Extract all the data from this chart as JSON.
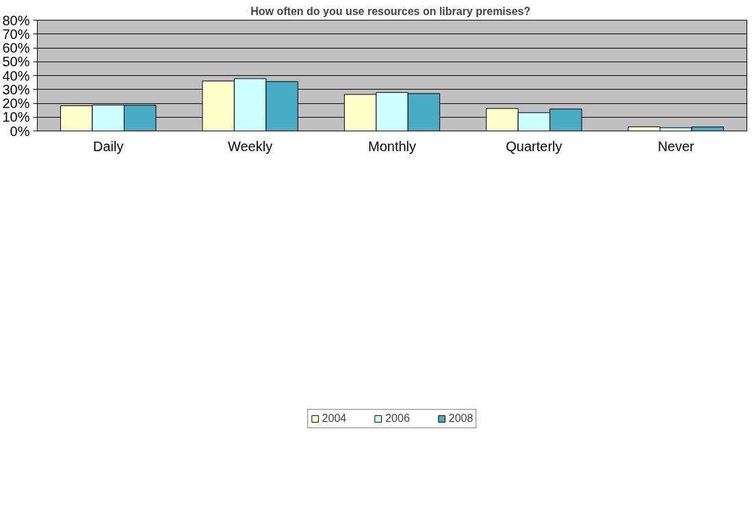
{
  "chart_data": {
    "type": "bar",
    "title": "How often do you use resources  on library premises?",
    "categories": [
      "Daily",
      "Weekly",
      "Monthly",
      "Quarterly",
      "Never"
    ],
    "series": [
      {
        "name": "2004",
        "color": "#ffffcc",
        "values": [
          18.2,
          36.1,
          26.4,
          16.2,
          3.0
        ]
      },
      {
        "name": "2006",
        "color": "#ccffff",
        "values": [
          18.7,
          37.8,
          27.8,
          13.2,
          2.3
        ]
      },
      {
        "name": "2008",
        "color": "#4bacc6",
        "values": [
          18.6,
          35.7,
          27.0,
          15.9,
          2.9
        ]
      }
    ],
    "ylim": [
      0,
      80
    ],
    "yticks": [
      {
        "value": 0,
        "label": "0%"
      },
      {
        "value": 10,
        "label": "10%"
      },
      {
        "value": 20,
        "label": "20%"
      },
      {
        "value": 30,
        "label": "30%"
      },
      {
        "value": 40,
        "label": "40%"
      },
      {
        "value": 50,
        "label": "50%"
      },
      {
        "value": 60,
        "label": "60%"
      },
      {
        "value": 70,
        "label": "70%"
      },
      {
        "value": 80,
        "label": "80%"
      }
    ],
    "grid": "y",
    "legend": "bottom"
  }
}
